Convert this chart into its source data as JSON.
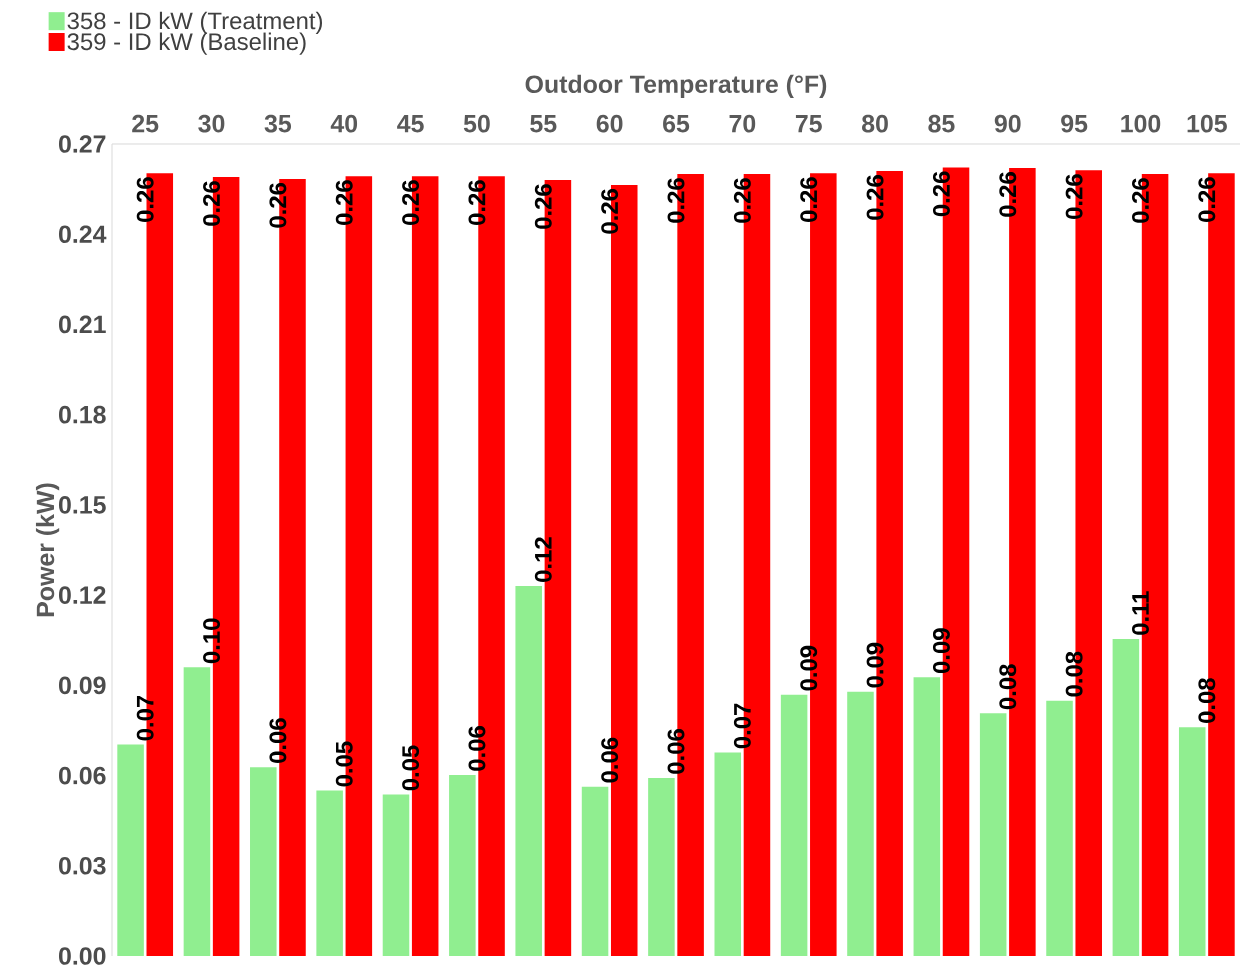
{
  "chart_data": {
    "type": "bar",
    "xlabel": "Outdoor Temperature (°F)",
    "ylabel": "Power (kW)",
    "categories": [
      "25",
      "30",
      "35",
      "40",
      "45",
      "50",
      "55",
      "60",
      "65",
      "70",
      "75",
      "80",
      "85",
      "90",
      "95",
      "100",
      "105"
    ],
    "series": [
      {
        "name": "358 - ID  kW (Treatment)",
        "color": "#90ee90",
        "values": [
          0.0703,
          0.096,
          0.0628,
          0.055,
          0.0537,
          0.0602,
          0.123,
          0.0563,
          0.0592,
          0.0677,
          0.0869,
          0.0879,
          0.0927,
          0.0807,
          0.0849,
          0.1054,
          0.0761
        ],
        "value_labels": [
          "0.07",
          "0.10",
          "0.06",
          "0.05",
          "0.05",
          "0.06",
          "0.12",
          "0.06",
          "0.06",
          "0.07",
          "0.09",
          "0.09",
          "0.09",
          "0.08",
          "0.08",
          "0.11",
          "0.08"
        ]
      },
      {
        "name": "359 - ID  kW (Baseline)",
        "color": "#ff0000",
        "values": [
          0.2603,
          0.259,
          0.2584,
          0.2593,
          0.2593,
          0.2593,
          0.258,
          0.2564,
          0.26,
          0.26,
          0.2603,
          0.261,
          0.2622,
          0.262,
          0.2613,
          0.26,
          0.2603
        ],
        "value_labels": [
          "0.26",
          "0.26",
          "0.26",
          "0.26",
          "0.26",
          "0.26",
          "0.26",
          "0.26",
          "0.26",
          "0.26",
          "0.26",
          "0.26",
          "0.26",
          "0.26",
          "0.26",
          "0.26",
          "0.26"
        ]
      }
    ],
    "ylim": [
      0,
      0.27
    ],
    "yticks": [
      {
        "value": 0,
        "label": "0.00"
      },
      0.03,
      0.06,
      0.09,
      0.12,
      0.15,
      0.18,
      0.21,
      0.24,
      0.27
    ],
    "legend": "top left"
  }
}
